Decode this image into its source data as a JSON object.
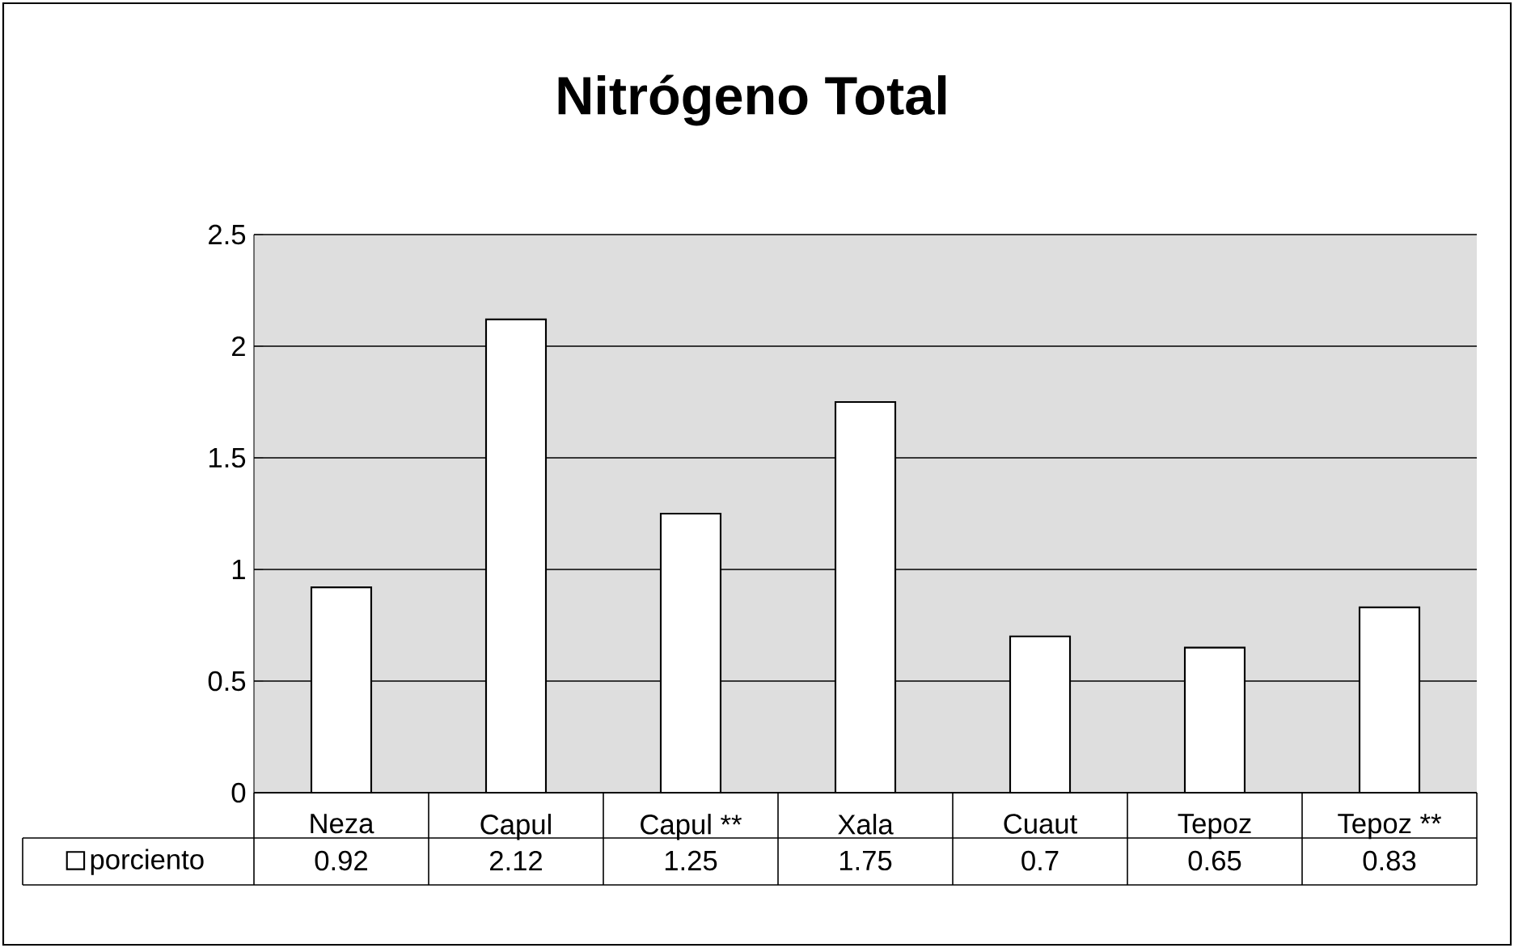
{
  "chart_data": {
    "type": "bar",
    "title": "Nitrógeno Total",
    "categories": [
      "Neza",
      "Capul",
      "Capul  **",
      "Xala",
      "Cuaut",
      "Tepoz",
      "Tepoz  **"
    ],
    "series": [
      {
        "name": "porciento",
        "color": "#ffffff",
        "values": [
          0.92,
          2.12,
          1.25,
          1.75,
          0.7,
          0.65,
          0.83
        ]
      }
    ],
    "ylim": [
      0,
      2.5
    ],
    "yticks": [
      0,
      0.5,
      1,
      1.5,
      2,
      2.5
    ],
    "grid": "y",
    "legend": "bottom left",
    "data_labels": true
  }
}
